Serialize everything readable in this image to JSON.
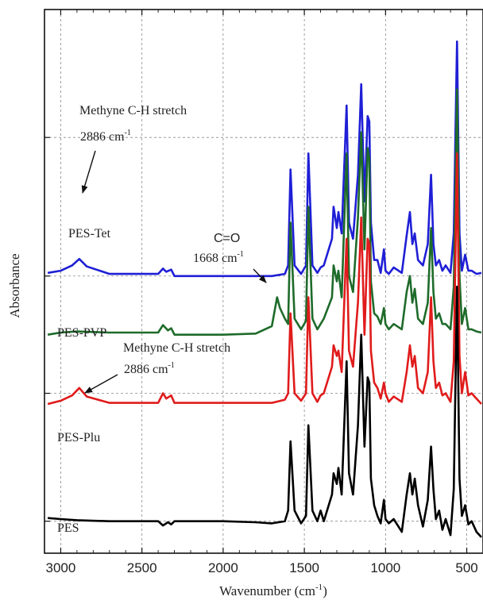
{
  "chart_data": {
    "type": "line",
    "title": "",
    "xlabel": "Wavenumber (cm",
    "xlabel_sup": "-1",
    "xlabel_close": ")",
    "ylabel": "Absorbance",
    "xlim": [
      3100,
      400
    ],
    "x_reversed": true,
    "x_ticks": [
      3000,
      2500,
      2000,
      1500,
      1000,
      500
    ],
    "x_tick_labels": [
      "3000",
      "2500",
      "2000",
      "1500",
      "1000",
      "500"
    ],
    "y_ticks_labeled": false,
    "grid": true,
    "colors": {
      "PES-Tet": "#1f1fd6",
      "PES-PVP": "#1e6b2a",
      "PES-Plu": "#e01b1b",
      "PES": "#000000"
    },
    "series": [
      {
        "name": "PES-Tet",
        "x": [
          3080,
          3000,
          2930,
          2886,
          2840,
          2700,
          2400,
          2370,
          2350,
          2320,
          2300,
          2000,
          1700,
          1620,
          1600,
          1585,
          1560,
          1520,
          1490,
          1475,
          1450,
          1420,
          1400,
          1380,
          1330,
          1320,
          1300,
          1290,
          1270,
          1240,
          1225,
          1200,
          1170,
          1150,
          1130,
          1110,
          1100,
          1090,
          1070,
          1050,
          1030,
          1010,
          1000,
          980,
          950,
          900,
          870,
          850,
          835,
          820,
          800,
          770,
          740,
          720,
          705,
          690,
          670,
          650,
          630,
          600,
          580,
          560,
          545,
          530,
          510,
          490,
          470,
          440,
          410
        ],
        "y": [
          8.3,
          8.5,
          9.0,
          9.6,
          8.9,
          8.2,
          8.2,
          8.7,
          8.4,
          8.6,
          8.0,
          8.0,
          8.0,
          8.2,
          9.0,
          18.0,
          9.0,
          8.2,
          9.0,
          19.5,
          9.0,
          8.3,
          8.8,
          9.0,
          11.5,
          14.5,
          12.5,
          14.0,
          12.0,
          24.0,
          13.0,
          11.5,
          17.5,
          26.0,
          15.0,
          23.0,
          22.5,
          13.0,
          9.5,
          9.5,
          8.3,
          10.5,
          8.5,
          8.2,
          8.8,
          8.3,
          11.8,
          14.0,
          11.0,
          12.0,
          9.5,
          9.0,
          11.0,
          17.5,
          11.0,
          9.0,
          9.5,
          8.5,
          9.0,
          8.3,
          12.0,
          30.0,
          12.0,
          8.5,
          10.0,
          8.5,
          8.5,
          8.2,
          8.3
        ]
      },
      {
        "name": "PES-PVP",
        "x": [
          3080,
          3000,
          2900,
          2700,
          2400,
          2370,
          2340,
          2320,
          2300,
          2000,
          1800,
          1700,
          1668,
          1650,
          1620,
          1600,
          1585,
          1560,
          1520,
          1490,
          1475,
          1450,
          1420,
          1400,
          1380,
          1330,
          1320,
          1300,
          1290,
          1270,
          1240,
          1225,
          1200,
          1170,
          1150,
          1130,
          1110,
          1100,
          1090,
          1070,
          1050,
          1030,
          1010,
          1000,
          980,
          950,
          900,
          870,
          850,
          835,
          820,
          800,
          770,
          740,
          720,
          705,
          690,
          670,
          650,
          630,
          600,
          580,
          560,
          545,
          530,
          510,
          490,
          470,
          440,
          410
        ],
        "y": [
          2.5,
          2.7,
          2.8,
          2.7,
          2.7,
          3.4,
          2.9,
          3.1,
          2.5,
          2.5,
          2.6,
          3.3,
          6.0,
          5.0,
          4.0,
          3.5,
          13.0,
          4.0,
          3.0,
          3.8,
          14.5,
          4.0,
          3.0,
          3.5,
          4.0,
          6.0,
          9.0,
          7.5,
          8.5,
          6.0,
          19.5,
          8.0,
          6.5,
          13.5,
          21.5,
          10.5,
          20.0,
          19.0,
          7.5,
          4.5,
          4.2,
          3.5,
          5.0,
          3.5,
          3.0,
          3.5,
          3.0,
          6.5,
          8.0,
          5.5,
          6.8,
          4.0,
          3.5,
          5.5,
          12.5,
          6.5,
          4.0,
          4.5,
          3.5,
          3.5,
          3.0,
          7.0,
          25.5,
          8.0,
          3.5,
          5.0,
          3.0,
          3.0,
          2.8,
          2.7
        ]
      },
      {
        "name": "PES-Plu",
        "x": [
          3080,
          3000,
          2930,
          2886,
          2840,
          2700,
          2400,
          2370,
          2350,
          2320,
          2300,
          2000,
          1700,
          1620,
          1600,
          1585,
          1560,
          1520,
          1490,
          1475,
          1450,
          1420,
          1400,
          1380,
          1330,
          1320,
          1300,
          1290,
          1270,
          1240,
          1225,
          1200,
          1170,
          1150,
          1130,
          1110,
          1100,
          1090,
          1070,
          1050,
          1030,
          1010,
          1000,
          980,
          950,
          900,
          870,
          850,
          835,
          820,
          800,
          770,
          740,
          720,
          705,
          690,
          670,
          650,
          630,
          600,
          580,
          560,
          545,
          530,
          510,
          490,
          470,
          440,
          410
        ],
        "y": [
          -4.0,
          -3.7,
          -3.2,
          -2.5,
          -3.3,
          -3.9,
          -3.9,
          -3.0,
          -3.5,
          -3.2,
          -3.9,
          -3.9,
          -3.9,
          -3.6,
          -3.0,
          4.5,
          -3.0,
          -3.7,
          -3.0,
          6.0,
          -3.0,
          -3.8,
          -3.2,
          -3.0,
          -0.5,
          1.5,
          0.5,
          1.0,
          -1.0,
          11.5,
          1.0,
          -0.5,
          5.5,
          13.5,
          2.5,
          11.5,
          11.0,
          1.0,
          -2.0,
          -2.5,
          -3.5,
          -2.0,
          -3.0,
          -3.8,
          -3.3,
          -3.8,
          -1.0,
          1.5,
          -0.5,
          0.5,
          -2.5,
          -3.0,
          -1.0,
          6.0,
          0.0,
          -2.5,
          -2.0,
          -3.2,
          -3.0,
          -3.8,
          0.0,
          19.5,
          0.5,
          -3.0,
          -1.0,
          -3.2,
          -3.0,
          -3.5,
          -4.0
        ]
      },
      {
        "name": "PES",
        "x": [
          3080,
          3000,
          2900,
          2700,
          2400,
          2370,
          2340,
          2320,
          2300,
          2000,
          1800,
          1700,
          1620,
          1600,
          1585,
          1560,
          1520,
          1490,
          1475,
          1450,
          1420,
          1400,
          1380,
          1330,
          1320,
          1300,
          1290,
          1270,
          1240,
          1225,
          1200,
          1170,
          1150,
          1130,
          1110,
          1100,
          1090,
          1070,
          1050,
          1030,
          1010,
          1000,
          980,
          950,
          900,
          870,
          850,
          835,
          820,
          800,
          770,
          740,
          720,
          705,
          690,
          670,
          650,
          630,
          600,
          580,
          560,
          545,
          530,
          510,
          490,
          470,
          440,
          410
        ],
        "y": [
          -14.7,
          -14.8,
          -14.9,
          -15.0,
          -15.0,
          -15.4,
          -15.1,
          -15.3,
          -15.0,
          -15.0,
          -15.1,
          -15.2,
          -15.0,
          -14.0,
          -7.5,
          -14.0,
          -15.2,
          -14.5,
          -6.0,
          -14.0,
          -15.0,
          -14.0,
          -15.0,
          -12.5,
          -10.5,
          -11.5,
          -10.0,
          -12.5,
          0.0,
          -10.5,
          -12.5,
          -6.0,
          2.5,
          -8.0,
          -1.5,
          -2.0,
          -11.0,
          -13.5,
          -14.5,
          -15.2,
          -13.0,
          -14.8,
          -15.2,
          -14.8,
          -16.0,
          -12.5,
          -10.5,
          -12.5,
          -11.0,
          -13.5,
          -15.5,
          -13.0,
          -8.0,
          -12.0,
          -14.8,
          -14.0,
          -15.8,
          -14.8,
          -16.3,
          -12.0,
          7.0,
          -11.0,
          -14.5,
          -13.5,
          -15.3,
          -15.0,
          -16.0,
          -16.5
        ]
      }
    ],
    "series_labels": [
      "PES-Tet",
      "PES-PVP",
      "PES-Plu",
      "PES"
    ],
    "annotations": [
      {
        "id": "tet",
        "line1": "Methyne C-H stretch",
        "line2": "2886 cm",
        "sup": "-1"
      },
      {
        "id": "pvp",
        "line1": "C=O",
        "line2": "1668 cm",
        "sup": "-1"
      },
      {
        "id": "plu",
        "line1": "Methyne C-H stretch",
        "line2": "2886 cm",
        "sup": "-1"
      }
    ]
  }
}
